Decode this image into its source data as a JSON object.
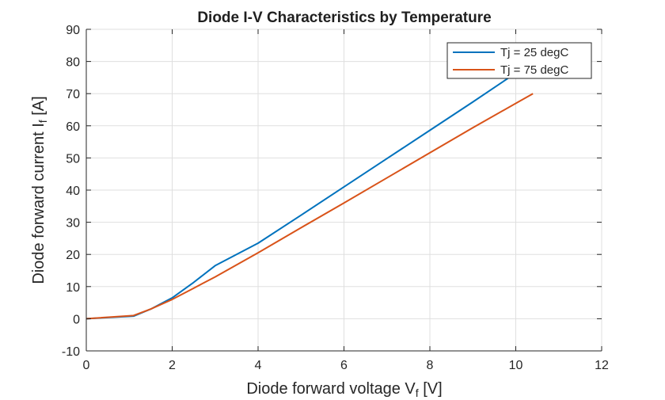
{
  "chart_data": {
    "type": "line",
    "title": "Diode I-V Characteristics by Temperature",
    "xlabel": "Diode  forward  voltage  V",
    "xlabel_sub": "f",
    "xlabel_unit": " [V]",
    "ylabel": "Diode  forward  current  I",
    "ylabel_sub": "f",
    "ylabel_unit": " [A]",
    "xlim": [
      0,
      12
    ],
    "ylim": [
      -10,
      90
    ],
    "xticks": [
      0,
      2,
      4,
      6,
      8,
      10,
      12
    ],
    "yticks": [
      -10,
      0,
      10,
      20,
      30,
      40,
      50,
      60,
      70,
      80,
      90
    ],
    "grid": true,
    "legend_position": "top-right",
    "series": [
      {
        "name": "Tj = 25 degC",
        "color": "#0072BD",
        "x": [
          0,
          1.1,
          1.5,
          2.0,
          2.5,
          3.0,
          4.0,
          5.0,
          6.0,
          7.0,
          8.0,
          9.0,
          9.9
        ],
        "y": [
          0,
          0.8,
          3.0,
          6.5,
          11.3,
          16.5,
          23.5,
          32.2,
          41.0,
          49.8,
          58.6,
          67.4,
          75.5
        ]
      },
      {
        "name": "Tj = 75 degC",
        "color": "#D95319",
        "x": [
          0,
          1.1,
          1.5,
          2.0,
          2.5,
          3.0,
          4.0,
          5.0,
          6.0,
          7.0,
          8.0,
          9.0,
          10.4
        ],
        "y": [
          0,
          1.0,
          3.0,
          6.0,
          9.5,
          13.0,
          20.5,
          28.3,
          36.0,
          43.8,
          51.6,
          59.4,
          70.0
        ]
      }
    ]
  }
}
